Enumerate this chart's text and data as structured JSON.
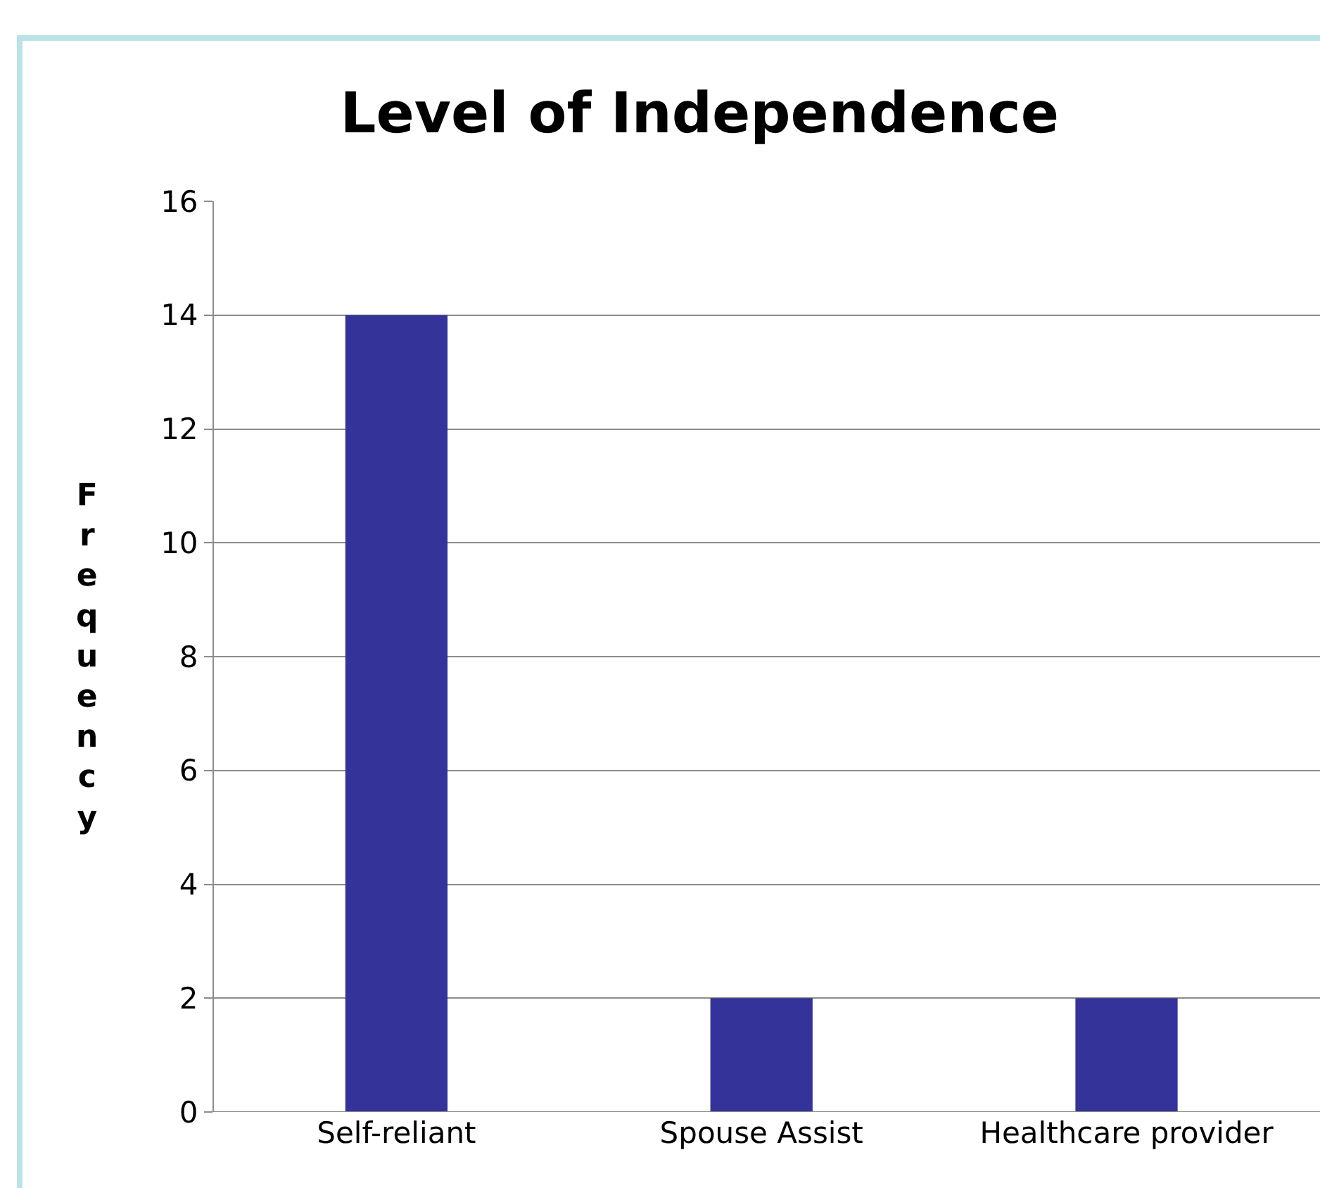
{
  "chart_data": {
    "type": "bar",
    "title": "Level of Independence",
    "ylabel": "Frequency",
    "categories": [
      "Self-reliant",
      "Spouse Assist",
      "Healthcare provider"
    ],
    "values": [
      14,
      2,
      2
    ],
    "color": "#333399",
    "ylim": [
      0,
      16
    ],
    "yticks": [
      0,
      2,
      4,
      6,
      8,
      10,
      12,
      14,
      16
    ],
    "grid": "y"
  }
}
